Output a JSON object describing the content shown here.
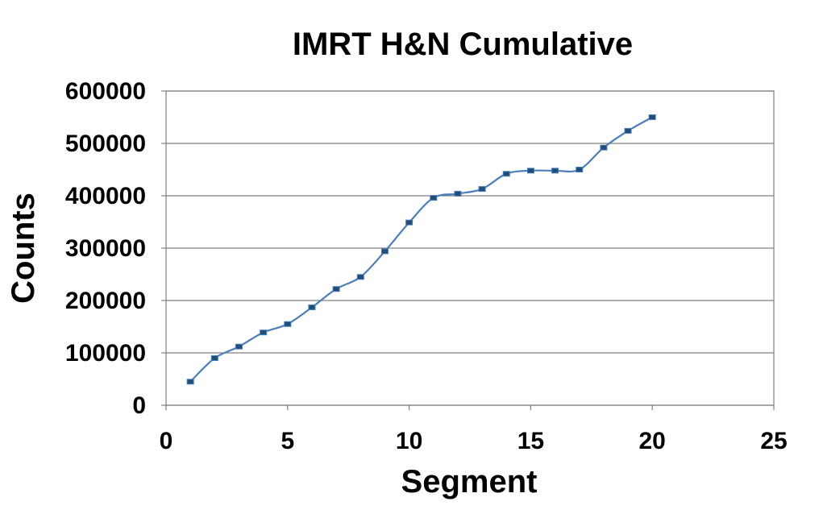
{
  "chart_data": {
    "type": "line",
    "title": "IMRT H&N Cumulative",
    "xlabel": "Segment",
    "ylabel": "Counts",
    "xlim": [
      0,
      25
    ],
    "ylim": [
      0,
      600000
    ],
    "xticks": [
      0,
      5,
      10,
      15,
      20,
      25
    ],
    "yticks": [
      0,
      100000,
      200000,
      300000,
      400000,
      500000,
      600000
    ],
    "xtick_labels": [
      "0",
      "5",
      "10",
      "15",
      "20",
      "25"
    ],
    "ytick_labels": [
      "0",
      "100000",
      "200000",
      "300000",
      "400000",
      "500000",
      "600000"
    ],
    "grid": "horizontal",
    "legend": "none",
    "series": [
      {
        "x": [
          1,
          2,
          3,
          4,
          5,
          6,
          7,
          8,
          9,
          10,
          11,
          12,
          13,
          14,
          15,
          16,
          17,
          18,
          19,
          20
        ],
        "y": [
          45000,
          90000,
          112000,
          139000,
          155000,
          187000,
          222000,
          245000,
          294000,
          349000,
          396000,
          404000,
          413000,
          442000,
          448000,
          448000,
          450000,
          492000,
          524000,
          550000
        ],
        "color": "#4a7ebb",
        "marker_color": "#1f4e79"
      }
    ]
  }
}
